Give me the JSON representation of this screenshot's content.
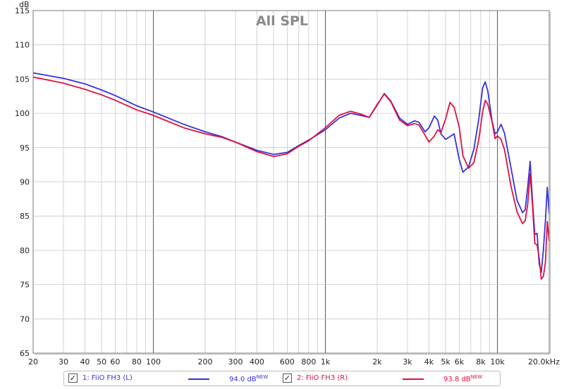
{
  "chart_data": {
    "type": "line",
    "title": "All SPL",
    "ylabel": "dB",
    "xlabel_unit": "20.0kHz",
    "x_scale": "log",
    "xlim": [
      20,
      20000
    ],
    "ylim": [
      65,
      115
    ],
    "grid": true,
    "x_ticks": [
      20,
      30,
      40,
      50,
      60,
      80,
      100,
      200,
      300,
      400,
      600,
      800,
      1000,
      2000,
      3000,
      4000,
      5000,
      6000,
      8000,
      10000
    ],
    "x_tick_labels": [
      "20",
      "30",
      "40",
      "50",
      "60",
      "80",
      "100",
      "200",
      "300",
      "400",
      "600",
      "800",
      "1k",
      "2k",
      "3k",
      "4k",
      "5k",
      "6k",
      "8k",
      "10k"
    ],
    "y_ticks": [
      65,
      70,
      75,
      80,
      85,
      90,
      95,
      100,
      105,
      110,
      115
    ],
    "y_tick_labels": [
      "65",
      "70",
      "75",
      "80",
      "85",
      "90",
      "95",
      "100",
      "105",
      "110",
      "115"
    ],
    "series": [
      {
        "name": "1: FiiO FH3 (L)",
        "color": "#3333dd",
        "x": [
          20,
          30,
          40,
          50,
          60,
          80,
          100,
          150,
          200,
          250,
          300,
          400,
          500,
          600,
          700,
          800,
          1000,
          1200,
          1400,
          1600,
          1800,
          2000,
          2200,
          2400,
          2700,
          3000,
          3300,
          3500,
          3800,
          4000,
          4300,
          4500,
          4700,
          5000,
          5300,
          5600,
          6000,
          6300,
          6800,
          7300,
          7800,
          8200,
          8500,
          8800,
          9300,
          9700,
          10000,
          10500,
          11000,
          12000,
          13000,
          14000,
          14500,
          15000,
          15500,
          16000,
          16500,
          17000,
          17500,
          18000,
          18500,
          19000,
          19500,
          20000
        ],
        "y": [
          105.9,
          105.1,
          104.3,
          103.4,
          102.6,
          101.1,
          100.2,
          98.4,
          97.3,
          96.6,
          95.8,
          94.6,
          94.0,
          94.3,
          95.3,
          96.1,
          97.6,
          99.3,
          100.0,
          99.7,
          99.4,
          101.2,
          102.9,
          101.8,
          99.3,
          98.4,
          98.9,
          98.7,
          97.3,
          97.9,
          99.6,
          99.0,
          97.0,
          96.2,
          96.6,
          97.0,
          93.3,
          91.4,
          92.2,
          94.8,
          99.2,
          103.7,
          104.6,
          103.2,
          98.9,
          97.0,
          97.3,
          98.4,
          97.1,
          92.0,
          87.3,
          85.5,
          85.9,
          89.2,
          93.0,
          87.0,
          82.3,
          82.5,
          78.0,
          76.8,
          80.0,
          84.3,
          89.2,
          85.3
        ]
      },
      {
        "name": "2: FiiO FH3 (R)",
        "color": "#e01040",
        "x": [
          20,
          30,
          40,
          50,
          60,
          80,
          100,
          150,
          200,
          250,
          300,
          400,
          500,
          600,
          700,
          800,
          1000,
          1200,
          1400,
          1600,
          1800,
          2000,
          2200,
          2400,
          2700,
          3000,
          3300,
          3500,
          3800,
          4000,
          4300,
          4500,
          4700,
          5000,
          5300,
          5600,
          6000,
          6300,
          6800,
          7300,
          7800,
          8200,
          8500,
          8800,
          9300,
          9700,
          10000,
          10500,
          11000,
          12000,
          13000,
          14000,
          14500,
          15000,
          15500,
          16000,
          16500,
          17000,
          17500,
          18000,
          18500,
          19000,
          19500,
          20000
        ],
        "y": [
          105.3,
          104.4,
          103.5,
          102.7,
          101.9,
          100.5,
          99.7,
          97.9,
          97.0,
          96.5,
          95.8,
          94.4,
          93.7,
          94.1,
          95.2,
          96.0,
          97.9,
          99.7,
          100.3,
          99.9,
          99.4,
          101.3,
          102.8,
          101.7,
          99.0,
          98.2,
          98.5,
          98.3,
          96.8,
          95.8,
          96.7,
          97.6,
          97.2,
          99.2,
          101.6,
          100.9,
          98.0,
          93.8,
          92.0,
          92.8,
          96.2,
          100.2,
          101.9,
          101.3,
          98.8,
          96.3,
          96.7,
          96.2,
          94.7,
          89.3,
          85.6,
          83.9,
          84.3,
          86.7,
          91.2,
          86.4,
          81.0,
          80.8,
          78.9,
          75.8,
          76.2,
          78.2,
          84.2,
          81.3
        ]
      }
    ]
  },
  "legend": [
    {
      "label": "1: FiiO FH3 (L)",
      "value": "94.0 dB",
      "badge": "NEW",
      "checked": "✓",
      "color": "#3333dd"
    },
    {
      "label": "2: FiiO FH3 (R)",
      "value": "93.8 dB",
      "badge": "NEW",
      "checked": "✓",
      "color": "#e01040"
    }
  ]
}
